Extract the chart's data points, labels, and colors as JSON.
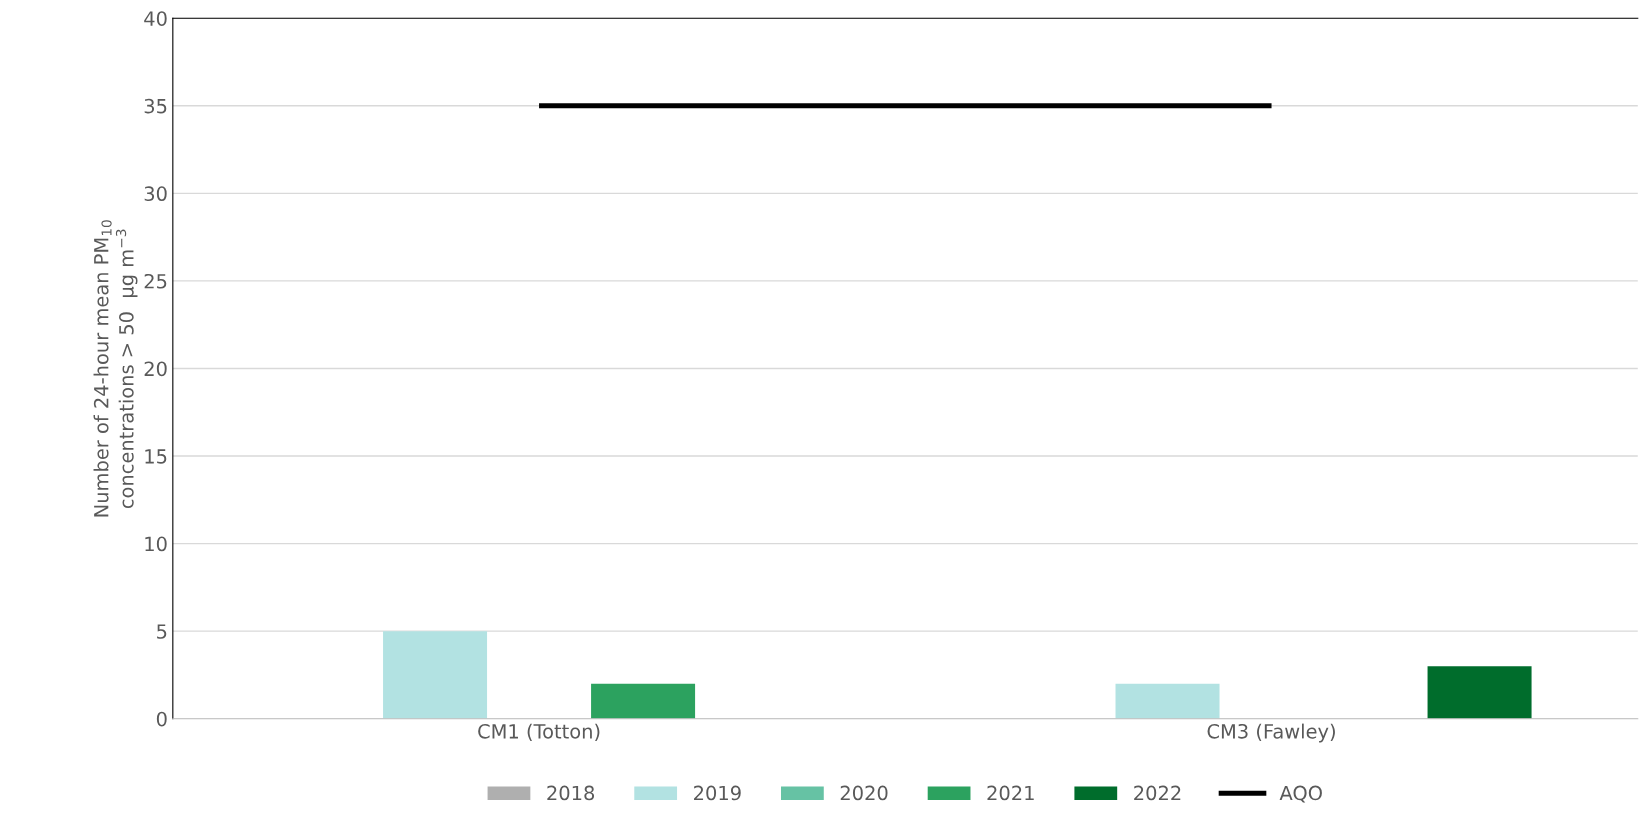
{
  "chart_data": {
    "type": "bar",
    "ylabel": "Number of 24-hour mean PM$_{10}$\nconcentrations > 50  μg m$^{−3}$",
    "categories": [
      "CM1 (Totton)",
      "CM3 (Fawley)"
    ],
    "series": [
      {
        "name": "2018",
        "color": "#afafaf",
        "values": [
          0,
          0
        ]
      },
      {
        "name": "2019",
        "color": "#b2e2e2",
        "values": [
          5,
          2
        ]
      },
      {
        "name": "2020",
        "color": "#66c2a4",
        "values": [
          0,
          0
        ]
      },
      {
        "name": "2021",
        "color": "#2ca25f",
        "values": [
          2,
          0
        ]
      },
      {
        "name": "2022",
        "color": "#006d2c",
        "values": [
          0,
          3
        ]
      }
    ],
    "ref_lines": [
      {
        "axis": "y",
        "value": 35,
        "label": "AQO",
        "color": "#000000",
        "line_style": "solid"
      }
    ],
    "ylim": [
      0,
      40
    ],
    "yticks": [
      0,
      5,
      10,
      15,
      20,
      25,
      30,
      35,
      40
    ],
    "grid": "y",
    "legend": "bottom"
  }
}
